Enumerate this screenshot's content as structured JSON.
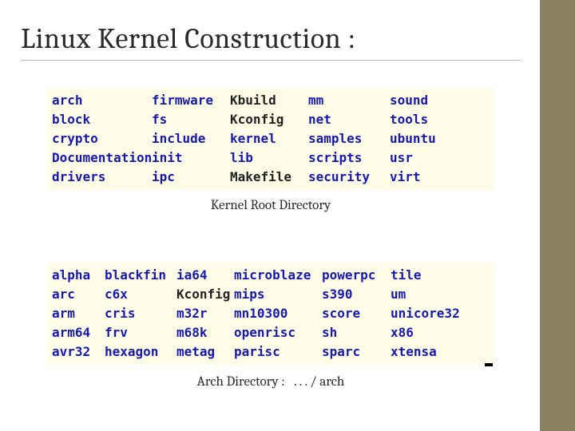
{
  "title": "Linux Kernel Construction :",
  "colors": {
    "slide_bg": "#ffffff",
    "stripe": "#8b8161",
    "listing_bg": "#fdfde8",
    "dir_color": "#1818b4",
    "file_color": "#222222",
    "title_color": "#2b2b2b",
    "title_underline": "#bdbdbd"
  },
  "kernel_listing": {
    "columns": 5,
    "rows": 5,
    "cells": [
      {
        "text": "arch",
        "kind": "dir"
      },
      {
        "text": "firmware",
        "kind": "dir"
      },
      {
        "text": "Kbuild",
        "kind": "file"
      },
      {
        "text": "mm",
        "kind": "dir"
      },
      {
        "text": "sound",
        "kind": "dir"
      },
      {
        "text": "block",
        "kind": "dir"
      },
      {
        "text": "fs",
        "kind": "dir"
      },
      {
        "text": "Kconfig",
        "kind": "file"
      },
      {
        "text": "net",
        "kind": "dir"
      },
      {
        "text": "tools",
        "kind": "dir"
      },
      {
        "text": "crypto",
        "kind": "dir"
      },
      {
        "text": "include",
        "kind": "dir"
      },
      {
        "text": "kernel",
        "kind": "dir"
      },
      {
        "text": "samples",
        "kind": "dir"
      },
      {
        "text": "ubuntu",
        "kind": "dir"
      },
      {
        "text": "Documentation",
        "kind": "dir"
      },
      {
        "text": "init",
        "kind": "dir"
      },
      {
        "text": "lib",
        "kind": "dir"
      },
      {
        "text": "scripts",
        "kind": "dir"
      },
      {
        "text": "usr",
        "kind": "dir"
      },
      {
        "text": "drivers",
        "kind": "dir"
      },
      {
        "text": "ipc",
        "kind": "dir"
      },
      {
        "text": "Makefile",
        "kind": "file"
      },
      {
        "text": "security",
        "kind": "dir"
      },
      {
        "text": "virt",
        "kind": "dir"
      }
    ],
    "caption": "Kernel Root Directory"
  },
  "arch_listing": {
    "columns": 6,
    "rows": 5,
    "cells": [
      {
        "text": "alpha",
        "kind": "dir"
      },
      {
        "text": "blackfin",
        "kind": "dir"
      },
      {
        "text": "ia64",
        "kind": "dir"
      },
      {
        "text": "microblaze",
        "kind": "dir"
      },
      {
        "text": "powerpc",
        "kind": "dir"
      },
      {
        "text": "tile",
        "kind": "dir"
      },
      {
        "text": "arc",
        "kind": "dir"
      },
      {
        "text": "c6x",
        "kind": "dir"
      },
      {
        "text": "Kconfig",
        "kind": "file"
      },
      {
        "text": "mips",
        "kind": "dir"
      },
      {
        "text": "s390",
        "kind": "dir"
      },
      {
        "text": "um",
        "kind": "dir"
      },
      {
        "text": "arm",
        "kind": "dir"
      },
      {
        "text": "cris",
        "kind": "dir"
      },
      {
        "text": "m32r",
        "kind": "dir"
      },
      {
        "text": "mn10300",
        "kind": "dir"
      },
      {
        "text": "score",
        "kind": "dir"
      },
      {
        "text": "unicore32",
        "kind": "dir"
      },
      {
        "text": "arm64",
        "kind": "dir"
      },
      {
        "text": "frv",
        "kind": "dir"
      },
      {
        "text": "m68k",
        "kind": "dir"
      },
      {
        "text": "openrisc",
        "kind": "dir"
      },
      {
        "text": "sh",
        "kind": "dir"
      },
      {
        "text": "x86",
        "kind": "dir"
      },
      {
        "text": "avr32",
        "kind": "dir"
      },
      {
        "text": "hexagon",
        "kind": "dir"
      },
      {
        "text": "metag",
        "kind": "dir"
      },
      {
        "text": "parisc",
        "kind": "dir"
      },
      {
        "text": "sparc",
        "kind": "dir"
      },
      {
        "text": "xtensa",
        "kind": "dir"
      }
    ],
    "caption": "Arch Directory :   . . . / arch"
  }
}
